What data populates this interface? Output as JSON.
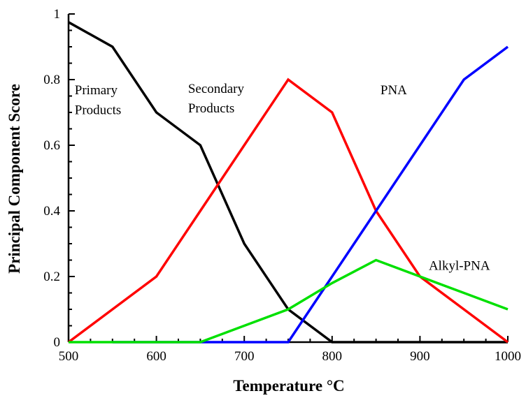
{
  "chart_data": {
    "type": "line",
    "xlabel": "Temperature °C",
    "ylabel": "Principal Component Score",
    "xlim": [
      500,
      1000
    ],
    "ylim": [
      0,
      1
    ],
    "x_ticks": [
      500,
      600,
      700,
      800,
      900,
      1000
    ],
    "y_ticks": [
      0,
      0.2,
      0.4,
      0.6,
      0.8,
      1
    ],
    "y_tick_labels": [
      "0",
      "0.2",
      "0.4",
      "0.6",
      "0.8",
      "1"
    ],
    "grid": false,
    "series": [
      {
        "color": "#000000",
        "x": [
          500,
          550,
          600,
          650,
          700,
          750,
          800,
          850,
          900,
          950,
          1000
        ],
        "y": [
          0.975,
          0.9,
          0.7,
          0.6,
          0.3,
          0.1,
          0.0,
          0.0,
          0.0,
          0.0,
          0.0
        ]
      },
      {
        "color": "#ff0000",
        "x": [
          500,
          550,
          600,
          650,
          700,
          750,
          800,
          850,
          900,
          950,
          1000
        ],
        "y": [
          0.0,
          0.1,
          0.2,
          0.4,
          0.6,
          0.8,
          0.7,
          0.4,
          0.2,
          0.1,
          0.0
        ]
      },
      {
        "color": "#0000ff",
        "x": [
          550,
          600,
          650,
          700,
          750,
          800,
          850,
          900,
          950,
          1000
        ],
        "y": [
          0.0,
          0.0,
          0.0,
          0.0,
          0.0,
          0.2,
          0.4,
          0.6,
          0.8,
          0.9
        ]
      },
      {
        "color": "#00e000",
        "x": [
          500,
          550,
          600,
          650,
          700,
          750,
          800,
          850,
          900,
          950,
          1000
        ],
        "y": [
          0.0,
          0.0,
          0.0,
          0.0,
          0.05,
          0.1,
          0.18,
          0.25,
          0.2,
          0.15,
          0.1
        ]
      }
    ],
    "annotations": [
      {
        "text": "Primary",
        "x": 507,
        "y": 0.755
      },
      {
        "text": "Products",
        "x": 507,
        "y": 0.695
      },
      {
        "text": "Secondary",
        "x": 636,
        "y": 0.76
      },
      {
        "text": "Products",
        "x": 636,
        "y": 0.7
      },
      {
        "text": "PNA",
        "x": 855,
        "y": 0.755
      },
      {
        "text": "Alkyl-PNA",
        "x": 910,
        "y": 0.22
      }
    ]
  }
}
